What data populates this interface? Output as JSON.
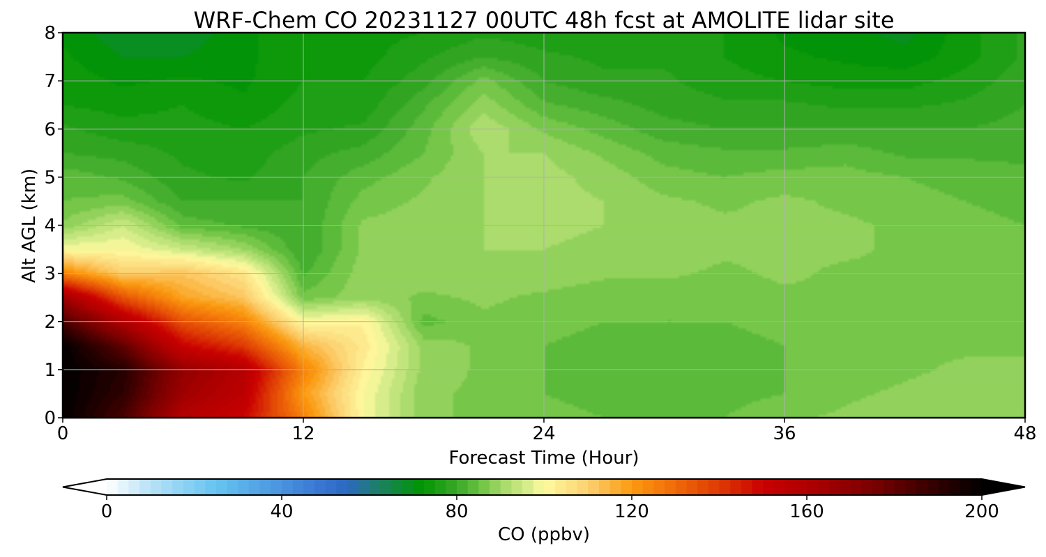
{
  "chart_data": {
    "type": "heatmap",
    "title": "WRF-Chem CO  20231127 00UTC 48h fcst at AMOLITE lidar site",
    "xlabel": "Forecast Time (Hour)",
    "ylabel": "Alt AGL (km)",
    "xlim": [
      0,
      48
    ],
    "ylim": [
      0,
      8
    ],
    "x_ticks": [
      0,
      12,
      24,
      36,
      48
    ],
    "x_tick_labels": [
      "0",
      "12",
      "24",
      "36",
      "48"
    ],
    "y_ticks": [
      0,
      1,
      2,
      3,
      4,
      5,
      6,
      7,
      8
    ],
    "y_tick_labels": [
      "0",
      "1",
      "2",
      "3",
      "4",
      "5",
      "6",
      "7",
      "8"
    ],
    "grid": true,
    "x": [
      0,
      3,
      6,
      9,
      12,
      15,
      18,
      21,
      24,
      27,
      30,
      33,
      36,
      39,
      42,
      45,
      48
    ],
    "y": [
      0,
      0.5,
      1,
      1.5,
      2,
      2.5,
      3,
      3.5,
      4,
      4.5,
      5,
      5.5,
      6,
      6.5,
      7,
      7.5,
      8
    ],
    "z": [
      [
        200,
        185,
        158,
        150,
        125,
        100,
        88,
        87,
        86,
        85,
        85,
        85,
        87,
        88,
        89,
        90,
        90
      ],
      [
        200,
        190,
        165,
        155,
        120,
        100,
        88,
        87,
        85,
        84,
        84,
        84,
        85,
        87,
        88,
        89,
        89
      ],
      [
        200,
        192,
        168,
        158,
        125,
        102,
        89,
        87,
        85,
        84,
        84,
        84,
        85,
        86,
        87,
        88,
        88
      ],
      [
        200,
        180,
        150,
        140,
        115,
        104,
        89,
        87,
        85,
        84,
        84,
        84,
        85,
        86,
        87,
        87,
        87
      ],
      [
        185,
        160,
        135,
        125,
        100,
        102,
        84,
        87,
        86,
        85,
        85,
        85,
        86,
        87,
        86,
        86,
        86
      ],
      [
        165,
        135,
        118,
        112,
        86,
        89,
        87,
        88,
        87,
        86,
        86,
        86,
        87,
        87,
        87,
        86,
        85
      ],
      [
        125,
        110,
        112,
        105,
        82,
        89,
        89,
        89,
        89,
        88,
        88,
        87,
        88,
        87,
        87,
        86,
        85
      ],
      [
        100,
        100,
        95,
        90,
        80,
        88,
        89,
        90,
        90,
        89,
        89,
        88,
        88,
        88,
        87,
        86,
        85
      ],
      [
        88,
        95,
        84,
        82,
        80,
        88,
        89,
        90,
        91,
        90,
        89,
        88,
        88,
        88,
        87,
        86,
        85
      ],
      [
        85,
        86,
        80,
        80,
        80,
        86,
        88,
        90,
        91,
        90,
        88,
        87,
        88,
        87,
        86,
        85,
        84
      ],
      [
        84,
        82,
        78,
        77,
        80,
        84,
        87,
        90,
        91,
        89,
        86,
        85,
        86,
        86,
        85,
        84,
        83
      ],
      [
        80,
        79,
        77,
        76,
        79,
        81,
        85,
        90,
        90,
        87,
        84,
        83,
        83,
        84,
        82,
        82,
        82
      ],
      [
        78,
        76,
        76,
        75,
        77,
        78,
        84,
        92,
        87,
        84,
        81,
        80,
        80,
        80,
        80,
        80,
        81
      ],
      [
        75,
        74,
        75,
        73,
        76,
        76,
        82,
        89,
        83,
        81,
        79,
        78,
        78,
        77,
        77,
        78,
        80
      ],
      [
        74,
        72,
        73,
        72,
        75,
        75,
        79,
        86,
        80,
        78,
        78,
        76,
        75,
        74,
        74,
        76,
        79
      ],
      [
        73,
        70,
        70,
        72,
        74,
        74,
        77,
        80,
        78,
        77,
        77,
        75,
        73,
        72,
        71,
        74,
        78
      ],
      [
        72,
        68,
        68,
        72,
        74,
        74,
        75,
        77,
        76,
        76,
        77,
        75,
        72,
        71,
        69,
        74,
        78
      ]
    ],
    "colorbar": {
      "label": "CO  (ppbv)",
      "range": [
        0,
        200
      ],
      "ticks": [
        0,
        40,
        80,
        120,
        160,
        200
      ],
      "tick_labels": [
        "0",
        "40",
        "80",
        "120",
        "160",
        "200"
      ],
      "extend": "both",
      "orientation": "horizontal",
      "colormap": [
        {
          "v": 0,
          "c": "#ffffff"
        },
        {
          "v": 10,
          "c": "#b7e1f7"
        },
        {
          "v": 25,
          "c": "#66c4f0"
        },
        {
          "v": 48,
          "c": "#3a78d4"
        },
        {
          "v": 55,
          "c": "#2b68c2"
        },
        {
          "v": 62,
          "c": "#1d8066"
        },
        {
          "v": 72,
          "c": "#009500"
        },
        {
          "v": 80,
          "c": "#3aa828"
        },
        {
          "v": 85,
          "c": "#66c040"
        },
        {
          "v": 90,
          "c": "#a0d865"
        },
        {
          "v": 96,
          "c": "#d4ec8a"
        },
        {
          "v": 100,
          "c": "#fffaa0"
        },
        {
          "v": 110,
          "c": "#fcd070"
        },
        {
          "v": 120,
          "c": "#fb9a10"
        },
        {
          "v": 130,
          "c": "#ef6a08"
        },
        {
          "v": 140,
          "c": "#de3a05"
        },
        {
          "v": 150,
          "c": "#c90000"
        },
        {
          "v": 160,
          "c": "#b00000"
        },
        {
          "v": 175,
          "c": "#7a0000"
        },
        {
          "v": 188,
          "c": "#380000"
        },
        {
          "v": 200,
          "c": "#000000"
        }
      ]
    }
  }
}
